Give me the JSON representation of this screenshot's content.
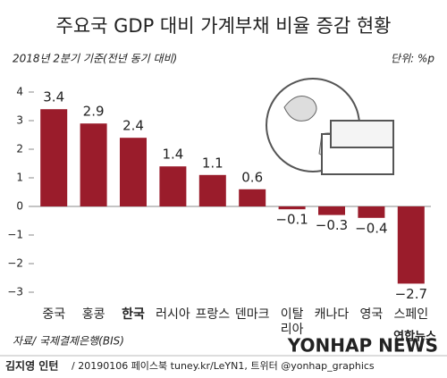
{
  "chart_data": {
    "type": "bar",
    "title": "주요국 GDP 대비 가계부채 비율 증감 현황",
    "subtitle": "2018년 2분기 기준(전년 동기 대비)",
    "unit": "단위: %p",
    "categories": [
      "중국",
      "홍콩",
      "한국",
      "러시아",
      "프랑스",
      "덴마크",
      "이탈\n리아",
      "캐나다",
      "영국",
      "스페인"
    ],
    "values": [
      3.4,
      2.9,
      2.4,
      1.4,
      1.1,
      0.6,
      -0.1,
      -0.3,
      -0.4,
      -2.7
    ],
    "value_labels": [
      "3.4",
      "2.9",
      "2.4",
      "1.4",
      "1.1",
      "0.6",
      "−0.1",
      "−0.3",
      "−0.4",
      "−2.7"
    ],
    "color": "#9a1c2b",
    "highlight_category": "한국",
    "ylim": [
      -3,
      4
    ],
    "yticks": [
      4,
      3,
      2,
      1,
      0,
      {
        "value": -1,
        "label": "−1"
      },
      {
        "value": -2,
        "label": "−2"
      },
      {
        "value": -3,
        "label": "−3"
      }
    ]
  },
  "source": "자료/ 국제결제은행(BIS)",
  "watermark": "YONHAP NEWS",
  "logo": "연합뉴스",
  "footer": {
    "author": "김지영 인턴",
    "credit": "/ 20190106 페이스북 tuney.kr/LeYN1, 트위터 @yonhap_graphics"
  }
}
